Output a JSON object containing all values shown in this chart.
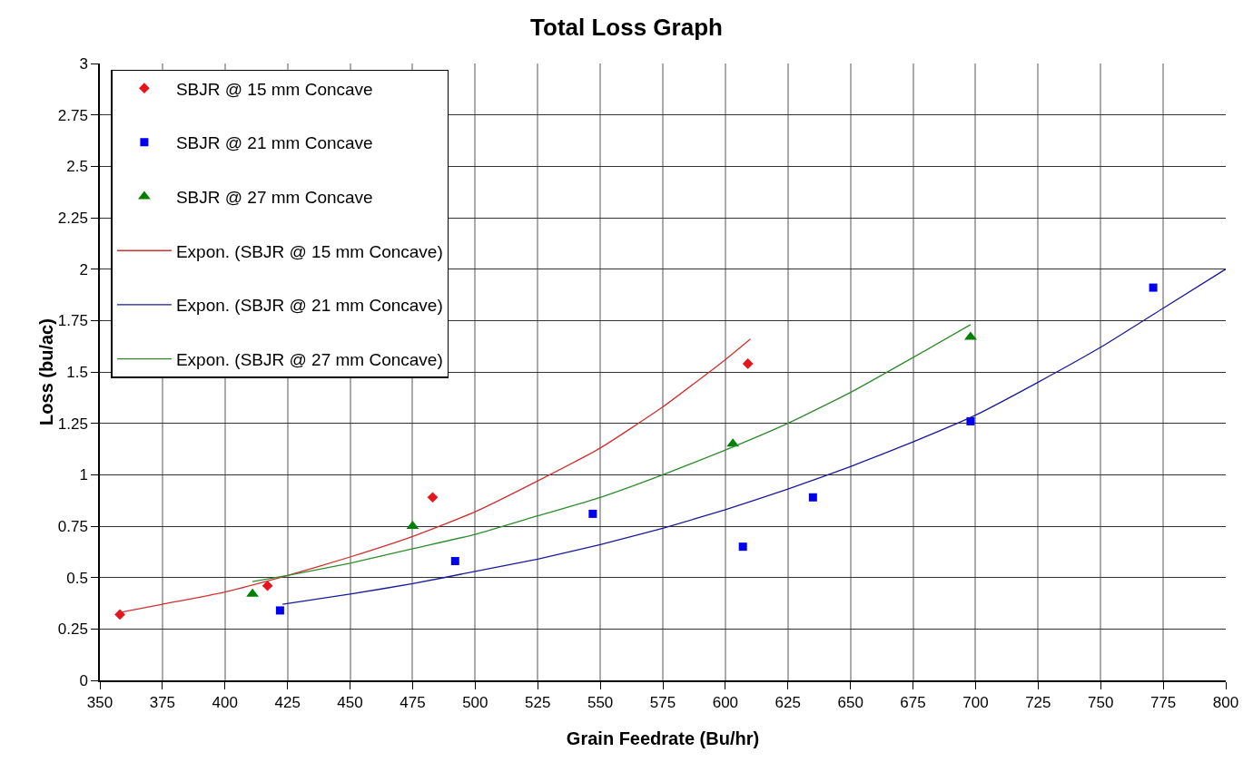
{
  "chart_data": {
    "type": "scatter",
    "title": "Total Loss Graph",
    "xlabel": "Grain Feedrate (Bu/hr)",
    "ylabel": "Loss (bu/ac)",
    "xlim": [
      350,
      800
    ],
    "xticks": [
      350,
      375,
      400,
      425,
      450,
      475,
      500,
      525,
      550,
      575,
      600,
      625,
      650,
      675,
      700,
      725,
      750,
      775,
      800
    ],
    "ylim": [
      0,
      3
    ],
    "yticks": [
      0,
      0.25,
      0.5,
      0.75,
      1,
      1.25,
      1.5,
      1.75,
      2,
      2.25,
      2.5,
      2.75,
      3
    ],
    "grid": true,
    "legend": "top left",
    "series": [
      {
        "name": "SBJR @ 15 mm Concave",
        "type": "scatter",
        "marker": "diamond",
        "color": "#e8141b",
        "x": [
          358,
          417,
          483,
          609
        ],
        "values": [
          0.32,
          0.46,
          0.89,
          1.54
        ]
      },
      {
        "name": "SBJR @ 21 mm Concave",
        "type": "scatter",
        "marker": "square",
        "color": "#0000ee",
        "x": [
          422,
          492,
          547,
          607,
          635,
          698,
          771
        ],
        "values": [
          0.34,
          0.58,
          0.81,
          0.65,
          0.89,
          1.26,
          1.91
        ]
      },
      {
        "name": "SBJR @ 27 mm Concave",
        "type": "scatter",
        "marker": "triangle",
        "color": "#008000",
        "x": [
          411,
          475,
          603,
          698
        ],
        "values": [
          0.42,
          0.75,
          1.15,
          1.67
        ]
      },
      {
        "name": "Expon. (SBJR @ 15 mm Concave)",
        "type": "line",
        "marker": "none",
        "color": "#d03030",
        "x": [
          358,
          375,
          400,
          425,
          450,
          475,
          500,
          525,
          550,
          575,
          600,
          610
        ],
        "values": [
          0.33,
          0.37,
          0.43,
          0.51,
          0.6,
          0.7,
          0.82,
          0.97,
          1.13,
          1.33,
          1.56,
          1.66
        ]
      },
      {
        "name": "Expon. (SBJR @ 21 mm Concave)",
        "type": "line",
        "marker": "none",
        "color": "#1a1a99",
        "x": [
          423,
          450,
          475,
          500,
          525,
          550,
          575,
          600,
          625,
          650,
          675,
          700,
          725,
          750,
          775,
          800
        ],
        "values": [
          0.37,
          0.42,
          0.47,
          0.53,
          0.59,
          0.66,
          0.74,
          0.83,
          0.93,
          1.04,
          1.16,
          1.29,
          1.45,
          1.62,
          1.81,
          2.0
        ]
      },
      {
        "name": "Expon. (SBJR @ 27 mm Concave)",
        "type": "line",
        "marker": "none",
        "color": "#2e8b2e",
        "x": [
          411,
          425,
          450,
          475,
          500,
          525,
          550,
          575,
          600,
          625,
          650,
          675,
          698
        ],
        "values": [
          0.48,
          0.51,
          0.57,
          0.64,
          0.71,
          0.8,
          0.89,
          1.0,
          1.12,
          1.25,
          1.4,
          1.57,
          1.73
        ]
      }
    ]
  }
}
